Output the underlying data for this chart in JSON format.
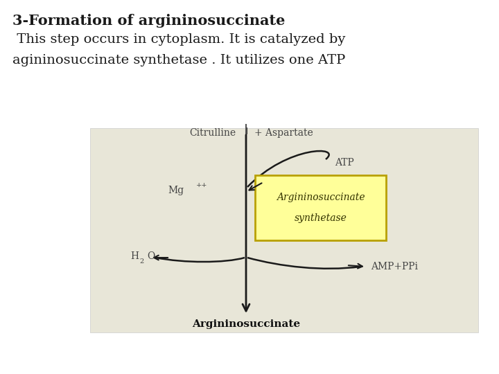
{
  "title_line1": "3-Formation of argininosuccinate",
  "title_line2": " This step occurs in cytoplasm. It is catalyzed by",
  "title_line3": "agininosuccinate synthetase . It utilizes one ATP",
  "bg_color": "#ffffff",
  "diagram_bg": "#e8e6d8",
  "box_fill": "#ffff99",
  "box_edge": "#b8a000",
  "text_dark": "#1a1a1a",
  "arrow_color": "#1a1a1a",
  "label_color": "#444444"
}
